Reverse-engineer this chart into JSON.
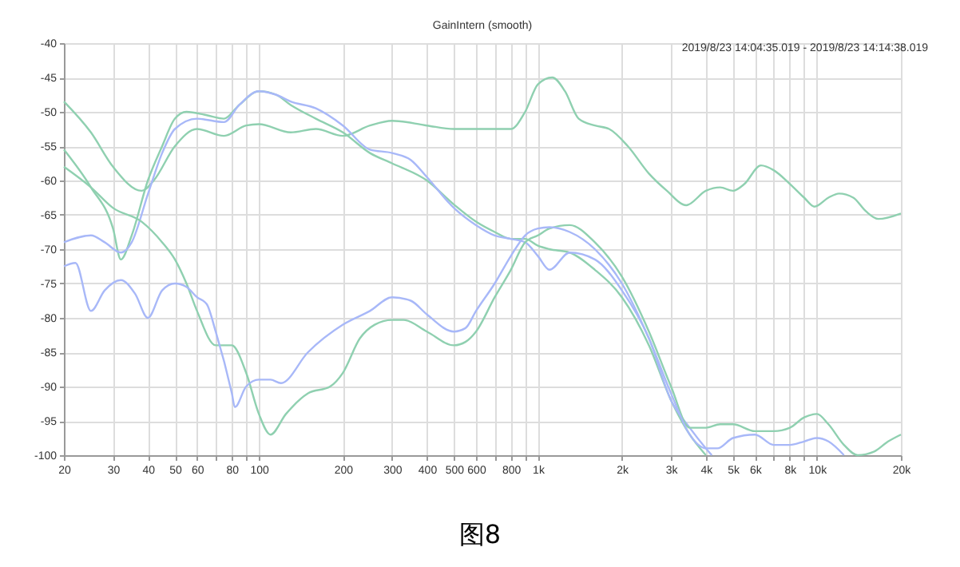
{
  "chart_data": {
    "type": "line",
    "title": "GainIntern (smooth)",
    "subtitle": "2019/8/23 14:04:35.019 - 2019/8/23 14:14:38.019",
    "annotations": [
      "图8"
    ],
    "log": "x",
    "grid": true,
    "line_style": "solid",
    "marker": "none",
    "legend": false,
    "xlim": [
      20,
      20000
    ],
    "ylim": [
      -100,
      -40
    ],
    "xticks": [
      20,
      30,
      40,
      50,
      60,
      {
        "value": 70,
        "label": null
      },
      80,
      {
        "value": 90,
        "label": null
      },
      100,
      200,
      300,
      400,
      500,
      600,
      {
        "value": 700,
        "label": null
      },
      800,
      {
        "value": 900,
        "label": null
      },
      {
        "value": 1000,
        "label": "1k"
      },
      {
        "value": 2000,
        "label": "2k"
      },
      {
        "value": 3000,
        "label": "3k"
      },
      {
        "value": 4000,
        "label": "4k"
      },
      {
        "value": 5000,
        "label": "5k"
      },
      {
        "value": 6000,
        "label": "6k"
      },
      {
        "value": 7000,
        "label": null
      },
      {
        "value": 8000,
        "label": "8k"
      },
      {
        "value": 9000,
        "label": null
      },
      {
        "value": 10000,
        "label": "10k"
      },
      {
        "value": 20000,
        "label": "20k"
      }
    ],
    "yticks": [
      -100,
      -95,
      -90,
      -85,
      -80,
      -75,
      -70,
      -65,
      -60,
      -55,
      -50,
      -45,
      -40
    ],
    "series": [
      {
        "color": "#8fd0b0",
        "x": [
          20,
          25,
          30,
          38,
          42,
          50,
          60,
          75,
          90,
          100,
          130,
          160,
          200,
          250,
          300,
          400,
          500,
          700,
          800,
          900,
          1000,
          1125,
          1250,
          1400,
          1600,
          1800,
          2100,
          2500,
          2900,
          3400,
          4000,
          4500,
          5000,
          5500,
          6300,
          7000,
          8000,
          9000,
          9800,
          11000,
          12000,
          13500,
          15000,
          16600,
          20000
        ],
        "values": [
          -48.5,
          -53,
          -58,
          -61.5,
          -60,
          -55,
          -52.5,
          -53.5,
          -52,
          -51.8,
          -53,
          -52.5,
          -53.5,
          -52,
          -51.3,
          -52,
          -52.5,
          -52.5,
          -52.5,
          -50,
          -46,
          -45,
          -47,
          -51,
          -52,
          -52.5,
          -55,
          -59,
          -61.5,
          -63.6,
          -61.5,
          -61,
          -61.5,
          -60.5,
          -57.8,
          -58.5,
          -60.5,
          -62.5,
          -63.8,
          -62.5,
          -61.9,
          -62.5,
          -64.5,
          -65.6,
          -64.8
        ]
      },
      {
        "color": "#8fd0b0",
        "x": [
          20,
          25,
          30,
          32,
          35,
          40,
          45,
          50,
          55,
          65,
          75,
          85,
          100,
          115,
          130,
          160,
          200,
          250,
          300,
          400,
          500,
          600,
          700,
          800,
          900,
          1000,
          1100,
          1300,
          1600,
          2000,
          2500,
          3000,
          3500,
          4000
        ],
        "values": [
          -55.5,
          -61,
          -67,
          -71.5,
          -68,
          -60,
          -55,
          -51,
          -50,
          -50.5,
          -51,
          -49,
          -47,
          -47.5,
          -49,
          -51,
          -53,
          -56,
          -57.5,
          -60,
          -63.5,
          -66,
          -67.5,
          -68.5,
          -68.5,
          -69.5,
          -70,
          -70.5,
          -73,
          -77,
          -84,
          -92,
          -97,
          -100
        ]
      },
      {
        "color": "#a8b8f8",
        "x": [
          20,
          25,
          28,
          32,
          35,
          40,
          45,
          50,
          60,
          75,
          85,
          100,
          115,
          130,
          160,
          200,
          250,
          300,
          350,
          400,
          500,
          600,
          700,
          800,
          900,
          1000,
          1100,
          1300,
          1600,
          2000,
          2500,
          3000,
          3500,
          4000,
          4200
        ],
        "values": [
          -69,
          -68,
          -69,
          -70.5,
          -69,
          -62,
          -56,
          -52.5,
          -51,
          -51.5,
          -49,
          -47,
          -47.5,
          -48.5,
          -49.5,
          -52,
          -55.5,
          -56,
          -57,
          -59.5,
          -64,
          -66.5,
          -68,
          -68.5,
          -69,
          -71,
          -73,
          -70.5,
          -71.5,
          -76,
          -83,
          -92,
          -96,
          -99,
          -100
        ]
      },
      {
        "color": "#8fd0b0",
        "x": [
          20,
          25,
          30,
          38,
          45,
          50,
          55,
          60,
          70,
          80,
          90,
          100,
          110,
          125,
          150,
          180,
          200,
          230,
          260,
          300,
          330,
          400,
          500,
          550,
          600,
          700,
          800,
          900,
          1000,
          1100,
          1300,
          1600,
          2000,
          2500,
          3000,
          3500,
          4000,
          4500,
          5000,
          6000,
          7000,
          8000,
          9000,
          10000,
          11000,
          12500,
          14000,
          16000,
          18000,
          20000
        ],
        "values": [
          -58,
          -61,
          -64,
          -66,
          -69,
          -71.5,
          -75,
          -79,
          -84,
          -84,
          -88,
          -94,
          -97,
          -94,
          -91,
          -90,
          -88,
          -83,
          -81,
          -80.3,
          -80.3,
          -82,
          -84,
          -83.5,
          -82,
          -77,
          -73,
          -69,
          -68,
          -67,
          -66.5,
          -69,
          -74,
          -82,
          -90,
          -96,
          -96,
          -95.5,
          -95.5,
          -96.5,
          -96.5,
          -96,
          -94.5,
          -94,
          -95.5,
          -98.5,
          -100,
          -99.5,
          -98,
          -97
        ]
      },
      {
        "color": "#a8b8f8",
        "x": [
          20,
          22,
          25,
          28,
          32,
          36,
          40,
          45,
          50,
          55,
          60,
          65,
          70,
          80,
          82,
          90,
          100,
          110,
          120,
          150,
          200,
          250,
          300,
          350,
          400,
          500,
          550,
          600,
          700,
          800,
          900,
          1000,
          1100,
          1300,
          1600,
          2000,
          2500,
          3000,
          3500,
          4000,
          4400,
          5000,
          6000,
          7000,
          8000,
          9000,
          10000,
          11000,
          12500
        ],
        "values": [
          -72.5,
          -72,
          -79,
          -76,
          -74.5,
          -76.5,
          -80,
          -76,
          -75,
          -75.5,
          -77,
          -78,
          -82,
          -91,
          -93,
          -90,
          -89,
          -89,
          -89.5,
          -85,
          -81,
          -79,
          -77,
          -77.5,
          -79.5,
          -82,
          -81.5,
          -79,
          -75,
          -71,
          -68,
          -67,
          -66.8,
          -67.5,
          -70,
          -75,
          -83,
          -91,
          -97,
          -99,
          -99,
          -97.5,
          -97,
          -98.5,
          -98.5,
          -98,
          -97.5,
          -98,
          -100
        ]
      }
    ]
  }
}
